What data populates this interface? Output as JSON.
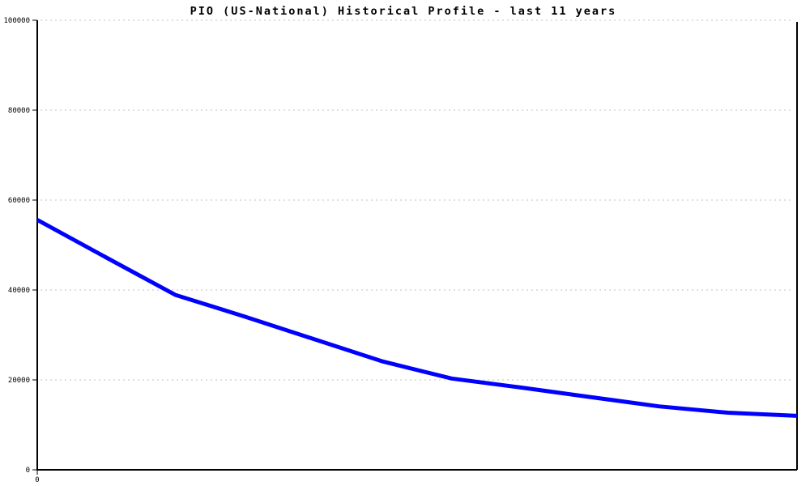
{
  "page": {
    "background_color": "#ffffff"
  },
  "chart_data": {
    "type": "line",
    "title": "PIO (US-National) Historical Profile - last 11 years",
    "x": [
      0,
      1,
      2,
      3,
      4,
      5,
      6,
      7,
      8,
      9,
      10,
      11
    ],
    "values": [
      55600,
      47200,
      38900,
      34100,
      29100,
      24100,
      20300,
      18300,
      16200,
      14100,
      12700,
      12000
    ],
    "xlabel": "",
    "ylabel": "",
    "ylim": [
      0,
      100000
    ],
    "yticks": [
      0,
      20000,
      40000,
      60000,
      80000,
      100000
    ],
    "ytick_labels": [
      "0",
      "20000",
      "40000",
      "60000",
      "80000",
      "100000"
    ],
    "x_origin_label": "0",
    "grid": "horizontal-dotted",
    "legend": "none",
    "line_color": "#0000ff",
    "line_width": 5,
    "axis_color": "#000000",
    "grid_color": "#c0c0c0",
    "text_color": "#000000"
  }
}
